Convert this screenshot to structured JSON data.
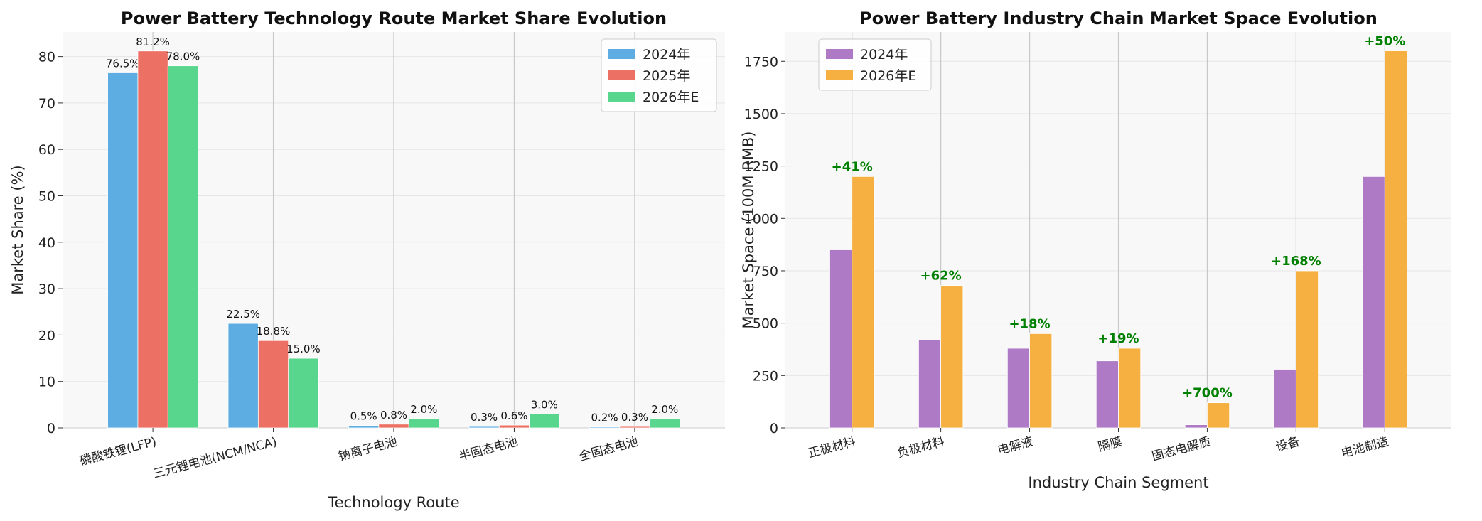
{
  "chart_data": [
    {
      "type": "bar",
      "title": "Power Battery Technology Route Market Share Evolution",
      "xlabel": "Technology Route",
      "ylabel": "Market Share (%)",
      "ylim": [
        0,
        85.3
      ],
      "yticks": [
        0,
        10,
        20,
        30,
        40,
        50,
        60,
        70,
        80
      ],
      "categories": [
        "磷酸铁锂(LFP)",
        "三元锂电池(NCM/NCA)",
        "钠离子电池",
        "半固态电池",
        "全固态电池"
      ],
      "series": [
        {
          "name": "2024年",
          "color": "#5dade2",
          "values": [
            76.5,
            22.5,
            0.5,
            0.3,
            0.2
          ]
        },
        {
          "name": "2025年",
          "color": "#ec7063",
          "values": [
            81.2,
            18.8,
            0.8,
            0.6,
            0.3
          ]
        },
        {
          "name": "2026年E",
          "color": "#58d68d",
          "values": [
            78.0,
            15.0,
            2.0,
            3.0,
            2.0
          ]
        }
      ],
      "data_labels": [
        [
          "76.5%",
          "22.5%",
          "0.5%",
          "0.3%",
          "0.2%"
        ],
        [
          "81.2%",
          "18.8%",
          "0.8%",
          "0.6%",
          "0.3%"
        ],
        [
          "78.0%",
          "15.0%",
          "2.0%",
          "3.0%",
          "2.0%"
        ]
      ],
      "legend_position": "top-right",
      "grid": true
    },
    {
      "type": "bar",
      "title": "Power Battery Industry Chain Market Space Evolution",
      "xlabel": "Industry Chain Segment",
      "ylabel": "Market Space (100M RMB)",
      "ylim": [
        0,
        1890
      ],
      "yticks": [
        0,
        250,
        500,
        750,
        1000,
        1250,
        1500,
        1750
      ],
      "categories": [
        "正极材料",
        "负极材料",
        "电解液",
        "隔膜",
        "固态电解质",
        "设备",
        "电池制造"
      ],
      "series": [
        {
          "name": "2024年",
          "color": "#af7ac5",
          "values": [
            850,
            420,
            380,
            320,
            15,
            280,
            1200
          ]
        },
        {
          "name": "2026年E",
          "color": "#f5b041",
          "values": [
            1200,
            680,
            450,
            380,
            120,
            750,
            1800
          ]
        }
      ],
      "growth_labels": [
        "+41%",
        "+62%",
        "+18%",
        "+19%",
        "+700%",
        "+168%",
        "+50%"
      ],
      "growth_color": "#008000",
      "legend_position": "top-left",
      "grid": true
    }
  ]
}
